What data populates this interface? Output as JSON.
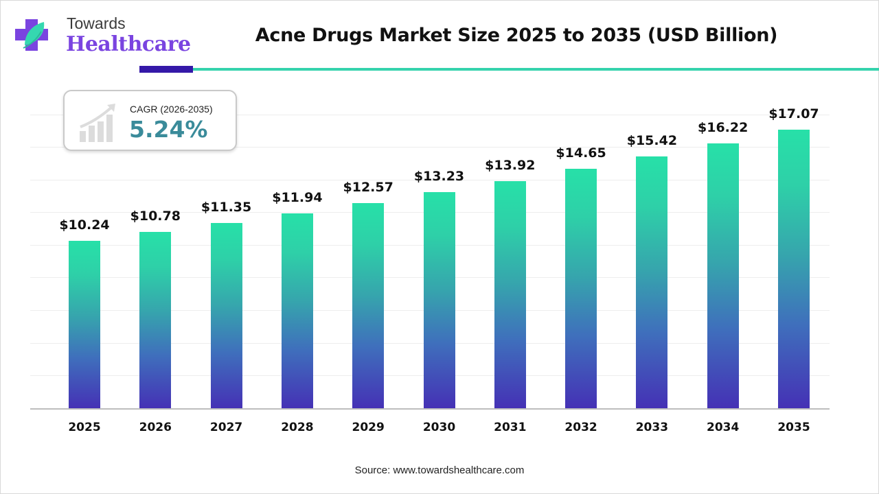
{
  "logo": {
    "line1": "Towards",
    "line2": "Healthcare"
  },
  "title": "Acne Drugs Market Size 2025 to 2035 (USD Billion)",
  "cagr": {
    "label": "CAGR (2026-2035)",
    "value": "5.24%",
    "icon": "growth-chart-icon"
  },
  "source": "Source: www.towardshealthcare.com",
  "colors": {
    "bar_top": "#27e0a8",
    "bar_bottom": "#4531b5",
    "accent_purple": "#3418a8",
    "accent_teal": "#35d3ad",
    "cagr_value": "#3a8b9a",
    "logo_purple": "#7a44e0"
  },
  "bars": [
    {
      "year": "2025",
      "label": "$10.24",
      "value": 10.24
    },
    {
      "year": "2026",
      "label": "$10.78",
      "value": 10.78
    },
    {
      "year": "2027",
      "label": "$11.35",
      "value": 11.35
    },
    {
      "year": "2028",
      "label": "$11.94",
      "value": 11.94
    },
    {
      "year": "2029",
      "label": "$12.57",
      "value": 12.57
    },
    {
      "year": "2030",
      "label": "$13.23",
      "value": 13.23
    },
    {
      "year": "2031",
      "label": "$13.92",
      "value": 13.92
    },
    {
      "year": "2032",
      "label": "$14.65",
      "value": 14.65
    },
    {
      "year": "2033",
      "label": "$15.42",
      "value": 15.42
    },
    {
      "year": "2034",
      "label": "$16.22",
      "value": 16.22
    },
    {
      "year": "2035",
      "label": "$17.07",
      "value": 17.07
    }
  ],
  "chart_data": {
    "type": "bar",
    "title": "Acne Drugs Market Size 2025 to 2035 (USD Billion)",
    "categories": [
      "2025",
      "2026",
      "2027",
      "2028",
      "2029",
      "2030",
      "2031",
      "2032",
      "2033",
      "2034",
      "2035"
    ],
    "values": [
      10.24,
      10.78,
      11.35,
      11.94,
      12.57,
      13.23,
      13.92,
      14.65,
      15.42,
      16.22,
      17.07
    ],
    "data_labels": [
      "$10.24",
      "$10.78",
      "$11.35",
      "$11.94",
      "$12.57",
      "$13.23",
      "$13.92",
      "$14.65",
      "$15.42",
      "$16.22",
      "$17.07"
    ],
    "xlabel": "",
    "ylabel": "USD Billion",
    "ylim": [
      0,
      20
    ],
    "grid": true,
    "y_axis_visible": false,
    "legend": null,
    "annotations": [
      "CAGR (2026-2035) 5.24%"
    ],
    "source": "Source: www.towardshealthcare.com"
  }
}
